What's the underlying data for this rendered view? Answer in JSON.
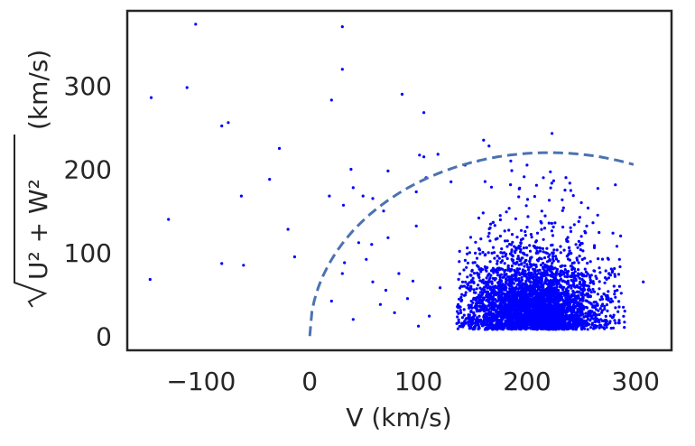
{
  "chart_data": {
    "type": "scatter",
    "title": "",
    "xlabel": "V (km/s)",
    "ylabel_radical": "U² + W²",
    "ylabel_unit": " (km/s)",
    "xlim": [
      -168,
      333
    ],
    "ylim": [
      -17,
      390
    ],
    "xticks": [
      -100,
      0,
      100,
      200,
      300
    ],
    "yticks": [
      0,
      100,
      200,
      300
    ],
    "xtick_labels": [
      "−100",
      "0",
      "100",
      "200",
      "300"
    ],
    "ytick_labels": [
      "0",
      "100",
      "200",
      "300"
    ],
    "grid": false,
    "point_color": "#0000ff",
    "curve_color": "#4c72b0",
    "curve": {
      "style": "dashed",
      "description_center_V": 220,
      "radius": 220,
      "V_range": [
        0,
        298
      ]
    },
    "outlier_points": [
      [
        -105,
        374
      ],
      [
        30,
        371
      ],
      [
        -146,
        286
      ],
      [
        -113,
        298
      ],
      [
        30,
        320
      ],
      [
        85,
        290
      ],
      [
        20,
        283
      ],
      [
        105,
        268
      ],
      [
        -75,
        256
      ],
      [
        -81,
        252
      ],
      [
        -28,
        225
      ],
      [
        -147,
        68
      ],
      [
        -130,
        140
      ],
      [
        -63,
        168
      ],
      [
        -37,
        188
      ],
      [
        -20,
        128
      ],
      [
        -14,
        95
      ],
      [
        -81,
        87
      ],
      [
        -61,
        85
      ],
      [
        38,
        200
      ],
      [
        18,
        168
      ],
      [
        31,
        157
      ],
      [
        40,
        178
      ],
      [
        49,
        168
      ],
      [
        58,
        165
      ],
      [
        68,
        150
      ],
      [
        72,
        198
      ],
      [
        98,
        173
      ],
      [
        101,
        217
      ],
      [
        118,
        218
      ],
      [
        107,
        190
      ],
      [
        98,
        132
      ],
      [
        72,
        118
      ],
      [
        57,
        110
      ],
      [
        45,
        112
      ],
      [
        52,
        92
      ],
      [
        30,
        75
      ],
      [
        58,
        65
      ],
      [
        70,
        55
      ],
      [
        82,
        75
      ],
      [
        20,
        42
      ],
      [
        40,
        20
      ],
      [
        65,
        38
      ],
      [
        90,
        45
      ],
      [
        100,
        12
      ],
      [
        110,
        24
      ],
      [
        120,
        58
      ],
      [
        32,
        88
      ],
      [
        78,
        28
      ],
      [
        95,
        66
      ],
      [
        160,
        235
      ],
      [
        165,
        228
      ],
      [
        223,
        243
      ],
      [
        105,
        215
      ],
      [
        130,
        185
      ],
      [
        235,
        175
      ],
      [
        240,
        130
      ],
      [
        262,
        106
      ],
      [
        272,
        70
      ],
      [
        290,
        30
      ],
      [
        307,
        65
      ],
      [
        283,
        55
      ],
      [
        275,
        92
      ],
      [
        265,
        145
      ],
      [
        250,
        160
      ],
      [
        185,
        210
      ],
      [
        200,
        205
      ],
      [
        215,
        190
      ],
      [
        143,
        205
      ],
      [
        155,
        210
      ]
    ],
    "cluster": {
      "center": [
        205,
        45
      ],
      "spread_V": 32,
      "spread_R": 38,
      "count": 3600
    }
  }
}
